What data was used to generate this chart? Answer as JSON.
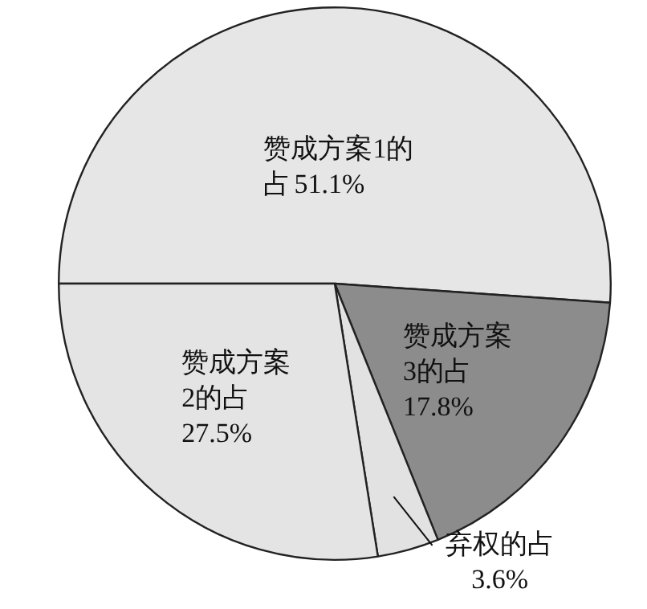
{
  "chart_data": {
    "type": "pie",
    "categories": [
      "赞成方案1的占",
      "赞成方案3的占",
      "弃权的占",
      "赞成方案2的占"
    ],
    "values": [
      51.1,
      17.8,
      3.6,
      27.5
    ],
    "colors": [
      "#e6e6e6",
      "#8c8c8c",
      "#e2e2e2",
      "#e4e4e4"
    ],
    "value_labels": [
      "51.1%",
      "17.8%",
      "3.6%",
      "27.5%"
    ]
  }
}
